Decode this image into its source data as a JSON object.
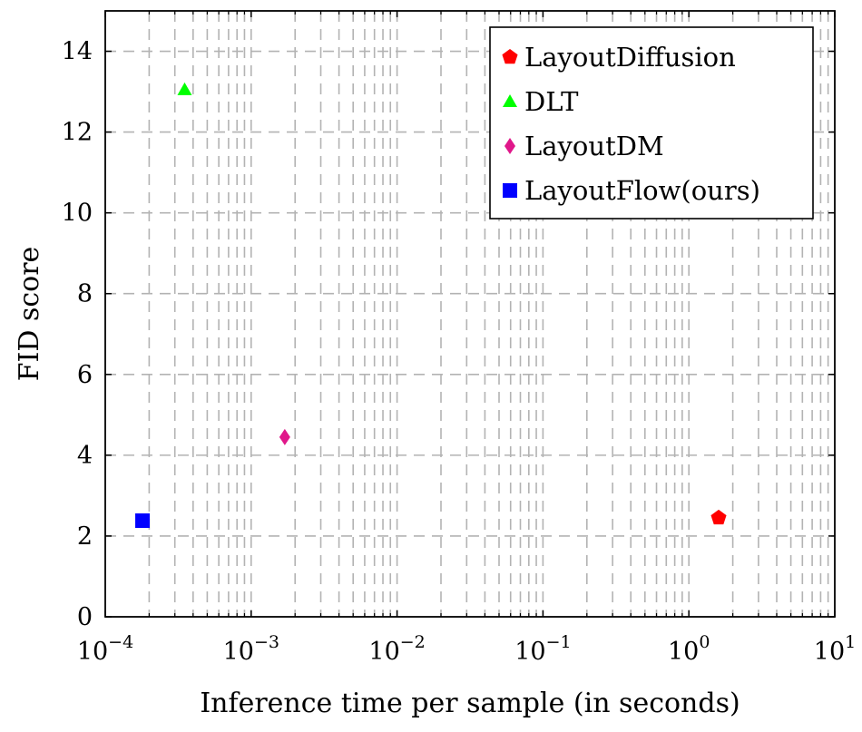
{
  "chart_data": {
    "type": "scatter",
    "xscale": "log",
    "xlim": [
      0.0001,
      10
    ],
    "ylim": [
      0,
      15
    ],
    "xlabel": "Inference time per sample (in seconds)",
    "ylabel": "FID score",
    "x_ticks": [
      {
        "value": 0.0001,
        "base": "10",
        "exp": "−4"
      },
      {
        "value": 0.001,
        "base": "10",
        "exp": "−3"
      },
      {
        "value": 0.01,
        "base": "10",
        "exp": "−2"
      },
      {
        "value": 0.1,
        "base": "10",
        "exp": "−1"
      },
      {
        "value": 1,
        "base": "10",
        "exp": "0"
      },
      {
        "value": 10,
        "base": "10",
        "exp": "1"
      }
    ],
    "y_ticks": [
      0,
      2,
      4,
      6,
      8,
      10,
      12,
      14
    ],
    "grid": true,
    "legend_position": "top-right",
    "series": [
      {
        "name": "LayoutDiffusion",
        "marker": "pentagon",
        "color": "#ff0000",
        "points": [
          {
            "x": 1.6,
            "y": 2.45
          }
        ]
      },
      {
        "name": "DLT",
        "marker": "triangle",
        "color": "#00ff00",
        "points": [
          {
            "x": 0.00035,
            "y": 13.05
          }
        ]
      },
      {
        "name": "LayoutDM",
        "marker": "diamond",
        "color": "#e0178a",
        "points": [
          {
            "x": 0.0017,
            "y": 4.45
          }
        ]
      },
      {
        "name": "LayoutFlow(ours)",
        "marker": "square",
        "color": "#0000ff",
        "points": [
          {
            "x": 0.00018,
            "y": 2.38
          }
        ]
      }
    ]
  }
}
